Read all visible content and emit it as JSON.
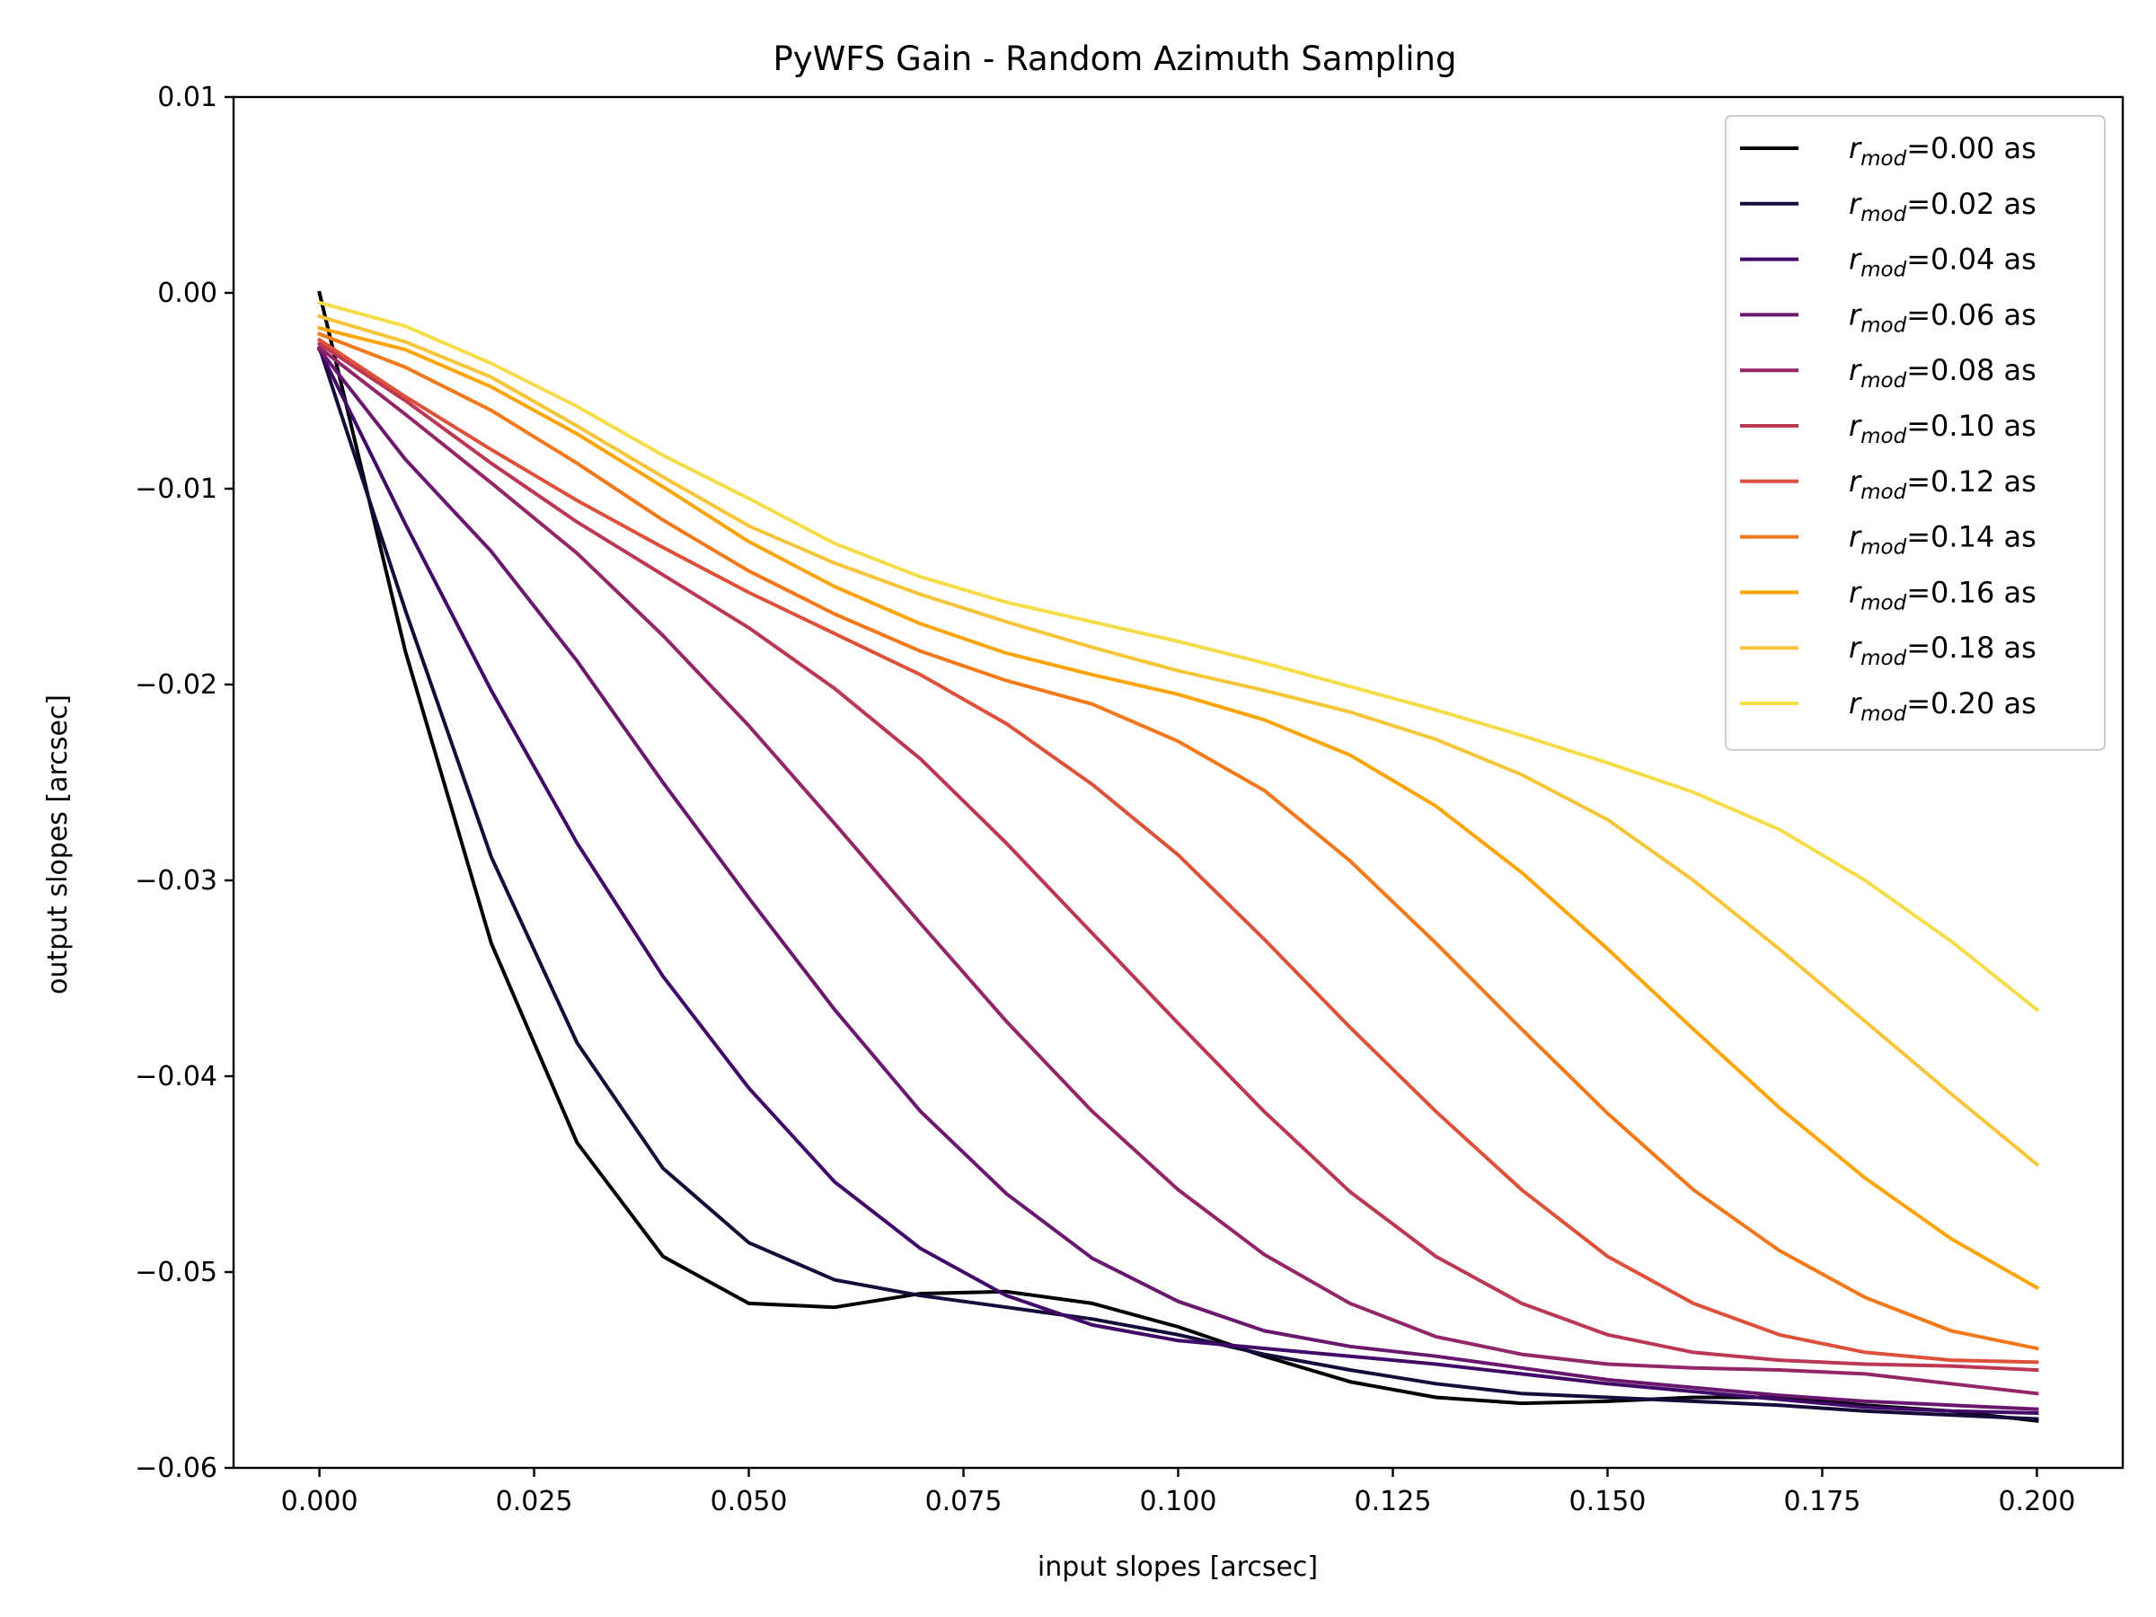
{
  "chart_data": {
    "type": "line",
    "title": "PyWFS Gain - Random Azimuth Sampling",
    "xlabel": "input slopes [arcsec]",
    "ylabel": "output slopes [arcsec]",
    "xlim": [
      -0.01,
      0.21
    ],
    "ylim": [
      -0.06,
      0.01
    ],
    "xticks": [
      0.0,
      0.025,
      0.05,
      0.075,
      0.1,
      0.125,
      0.15,
      0.175,
      0.2
    ],
    "xtick_labels": [
      "0.000",
      "0.025",
      "0.050",
      "0.075",
      "0.100",
      "0.125",
      "0.150",
      "0.175",
      "0.200"
    ],
    "yticks": [
      0.01,
      0.0,
      -0.01,
      -0.02,
      -0.03,
      -0.04,
      -0.05,
      -0.06
    ],
    "ytick_labels": [
      "0.01",
      "0.00",
      "−0.01",
      "−0.02",
      "−0.03",
      "−0.04",
      "−0.05",
      "−0.06"
    ],
    "grid": false,
    "legend_position": "top-right",
    "x": [
      0.0,
      0.01,
      0.02,
      0.03,
      0.04,
      0.05,
      0.06,
      0.07,
      0.08,
      0.09,
      0.1,
      0.11,
      0.12,
      0.13,
      0.14,
      0.15,
      0.16,
      0.17,
      0.18,
      0.19,
      0.2
    ],
    "series": [
      {
        "name": "0.00",
        "color": "#000004",
        "values": [
          0.0,
          -0.0183,
          -0.0332,
          -0.0434,
          -0.0492,
          -0.0516,
          -0.0518,
          -0.0511,
          -0.051,
          -0.0516,
          -0.0528,
          -0.0543,
          -0.0556,
          -0.0564,
          -0.0567,
          -0.0566,
          -0.0564,
          -0.0564,
          -0.0568,
          -0.0571,
          -0.0576
        ]
      },
      {
        "name": "0.02",
        "color": "#160b39",
        "values": [
          -0.0028,
          -0.0162,
          -0.0288,
          -0.0383,
          -0.0447,
          -0.0485,
          -0.0504,
          -0.0512,
          -0.0518,
          -0.0524,
          -0.0532,
          -0.0542,
          -0.055,
          -0.0557,
          -0.0562,
          -0.0564,
          -0.0566,
          -0.0568,
          -0.0571,
          -0.0573,
          -0.0575
        ]
      },
      {
        "name": "0.04",
        "color": "#420a68",
        "values": [
          -0.0029,
          -0.0118,
          -0.0203,
          -0.0281,
          -0.0349,
          -0.0406,
          -0.0454,
          -0.0488,
          -0.0512,
          -0.0527,
          -0.0535,
          -0.0539,
          -0.0543,
          -0.0547,
          -0.0552,
          -0.0557,
          -0.0561,
          -0.0565,
          -0.0569,
          -0.0571,
          -0.0572
        ]
      },
      {
        "name": "0.06",
        "color": "#6a176e",
        "values": [
          -0.0029,
          -0.0085,
          -0.0132,
          -0.0188,
          -0.025,
          -0.0309,
          -0.0366,
          -0.0418,
          -0.046,
          -0.0493,
          -0.0515,
          -0.053,
          -0.0538,
          -0.0543,
          -0.0549,
          -0.0555,
          -0.0559,
          -0.0563,
          -0.0566,
          -0.0568,
          -0.057
        ]
      },
      {
        "name": "0.08",
        "color": "#932667",
        "values": [
          -0.0028,
          -0.0062,
          -0.0097,
          -0.0133,
          -0.0175,
          -0.0221,
          -0.0271,
          -0.0322,
          -0.0372,
          -0.0418,
          -0.0458,
          -0.0491,
          -0.0516,
          -0.0533,
          -0.0542,
          -0.0547,
          -0.0549,
          -0.055,
          -0.0552,
          -0.0557,
          -0.0562
        ]
      },
      {
        "name": "0.10",
        "color": "#bc3754",
        "values": [
          -0.0026,
          -0.0055,
          -0.0087,
          -0.0117,
          -0.0144,
          -0.0171,
          -0.0202,
          -0.0238,
          -0.0281,
          -0.0327,
          -0.0373,
          -0.0418,
          -0.0459,
          -0.0492,
          -0.0516,
          -0.0532,
          -0.0541,
          -0.0545,
          -0.0547,
          -0.0548,
          -0.055
        ]
      },
      {
        "name": "0.12",
        "color": "#dd513a",
        "values": [
          -0.0024,
          -0.0053,
          -0.008,
          -0.0106,
          -0.013,
          -0.0153,
          -0.0174,
          -0.0195,
          -0.022,
          -0.0251,
          -0.0287,
          -0.033,
          -0.0375,
          -0.0418,
          -0.0458,
          -0.0492,
          -0.0516,
          -0.0532,
          -0.0541,
          -0.0545,
          -0.0546
        ]
      },
      {
        "name": "0.14",
        "color": "#f37819",
        "values": [
          -0.0021,
          -0.0038,
          -0.006,
          -0.0087,
          -0.0116,
          -0.0142,
          -0.0164,
          -0.0183,
          -0.0198,
          -0.021,
          -0.0229,
          -0.0254,
          -0.029,
          -0.0332,
          -0.0376,
          -0.0419,
          -0.0458,
          -0.0489,
          -0.0513,
          -0.053,
          -0.0539
        ]
      },
      {
        "name": "0.16",
        "color": "#fca50a",
        "values": [
          -0.0018,
          -0.0029,
          -0.0048,
          -0.0072,
          -0.0099,
          -0.0127,
          -0.015,
          -0.0169,
          -0.0184,
          -0.0195,
          -0.0205,
          -0.0218,
          -0.0236,
          -0.0262,
          -0.0296,
          -0.0335,
          -0.0376,
          -0.0416,
          -0.0452,
          -0.0483,
          -0.0508
        ]
      },
      {
        "name": "0.18",
        "color": "#f6c53a",
        "values": [
          -0.0012,
          -0.0025,
          -0.0043,
          -0.0068,
          -0.0094,
          -0.0119,
          -0.0138,
          -0.0154,
          -0.0168,
          -0.0181,
          -0.0193,
          -0.0203,
          -0.0214,
          -0.0228,
          -0.0246,
          -0.0269,
          -0.03,
          -0.0335,
          -0.0372,
          -0.0409,
          -0.0445
        ]
      },
      {
        "name": "0.20",
        "color": "#f5dd4a",
        "values": [
          -0.0005,
          -0.0017,
          -0.0036,
          -0.0058,
          -0.0083,
          -0.0105,
          -0.0128,
          -0.0145,
          -0.0158,
          -0.0168,
          -0.0178,
          -0.0189,
          -0.0201,
          -0.0213,
          -0.0226,
          -0.024,
          -0.0255,
          -0.0274,
          -0.03,
          -0.0331,
          -0.0366
        ]
      }
    ],
    "legend_prefix": "r",
    "legend_subscript": "mod",
    "legend_suffix": "=",
    "legend_unit": " as"
  }
}
